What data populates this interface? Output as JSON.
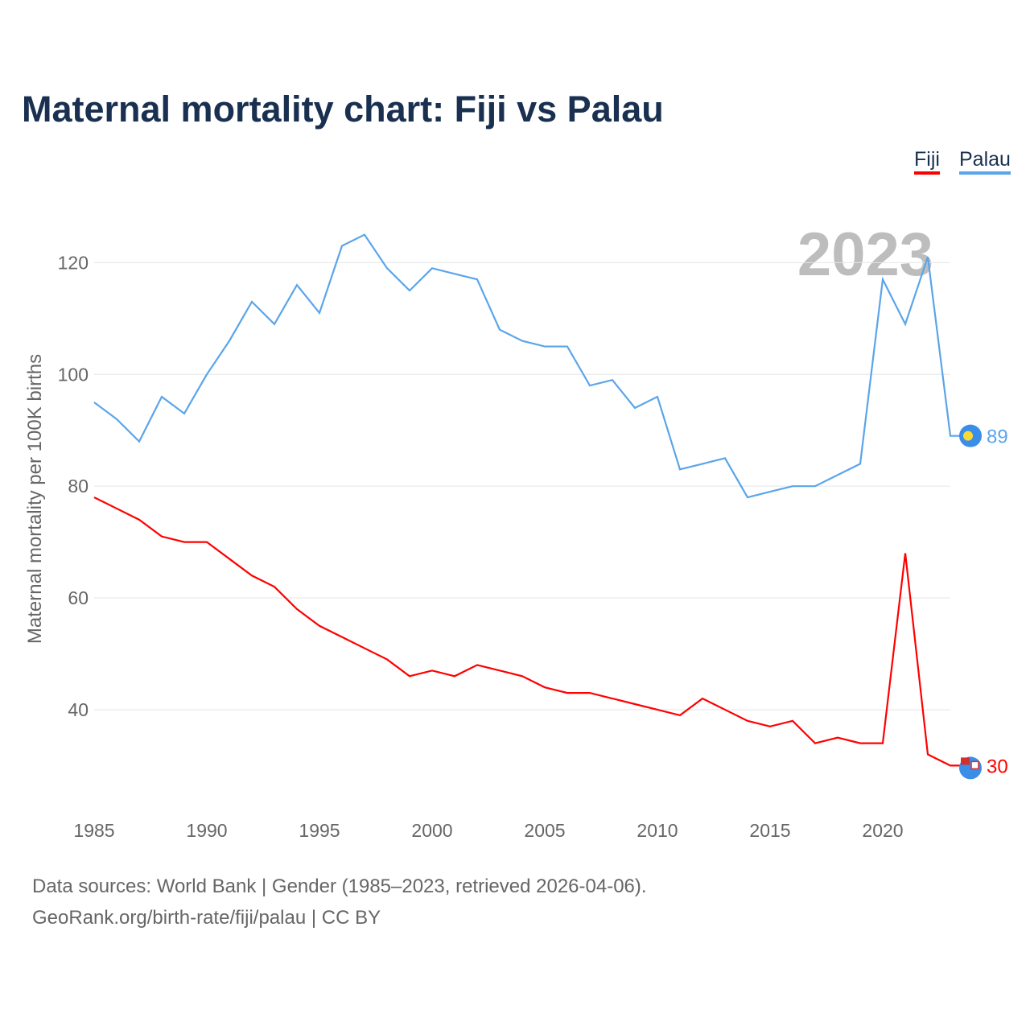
{
  "chart_data": {
    "type": "line",
    "title": "Maternal mortality chart: Fiji vs Palau",
    "ylabel": "Maternal mortality per 100K births",
    "xlabel": "",
    "year_label": "2023",
    "xlim": [
      1985,
      2023
    ],
    "ylim": [
      23,
      131
    ],
    "xticks": [
      1985,
      1990,
      1995,
      2000,
      2005,
      2010,
      2015,
      2020
    ],
    "yticks": [
      40,
      60,
      80,
      100,
      120
    ],
    "grid": true,
    "legend_position": "top-right",
    "x": [
      1985,
      1986,
      1987,
      1988,
      1989,
      1990,
      1991,
      1992,
      1993,
      1994,
      1995,
      1996,
      1997,
      1998,
      1999,
      2000,
      2001,
      2002,
      2003,
      2004,
      2005,
      2006,
      2007,
      2008,
      2009,
      2010,
      2011,
      2012,
      2013,
      2014,
      2015,
      2016,
      2017,
      2018,
      2019,
      2020,
      2021,
      2022,
      2023
    ],
    "series": [
      {
        "name": "Fiji",
        "color": "#ff0000",
        "end_label": "30",
        "values": [
          78,
          76,
          74,
          71,
          70,
          70,
          67,
          64,
          62,
          58,
          55,
          53,
          51,
          49,
          46,
          47,
          46,
          48,
          47,
          46,
          44,
          43,
          43,
          42,
          41,
          40,
          39,
          42,
          40,
          38,
          37,
          38,
          34,
          35,
          34,
          34,
          68,
          32,
          30
        ]
      },
      {
        "name": "Palau",
        "color": "#5aa5ea",
        "end_label": "89",
        "values": [
          95,
          92,
          88,
          96,
          93,
          100,
          106,
          113,
          109,
          116,
          111,
          123,
          125,
          119,
          115,
          119,
          118,
          117,
          108,
          106,
          105,
          105,
          98,
          99,
          94,
          96,
          83,
          84,
          85,
          78,
          79,
          80,
          80,
          82,
          84,
          117,
          109,
          121,
          89
        ]
      }
    ]
  },
  "footer": {
    "line1": "Data sources: World Bank | Gender (1985–2023, retrieved 2026-04-06).",
    "line2": "GeoRank.org/birth-rate/fiji/palau | CC BY"
  }
}
